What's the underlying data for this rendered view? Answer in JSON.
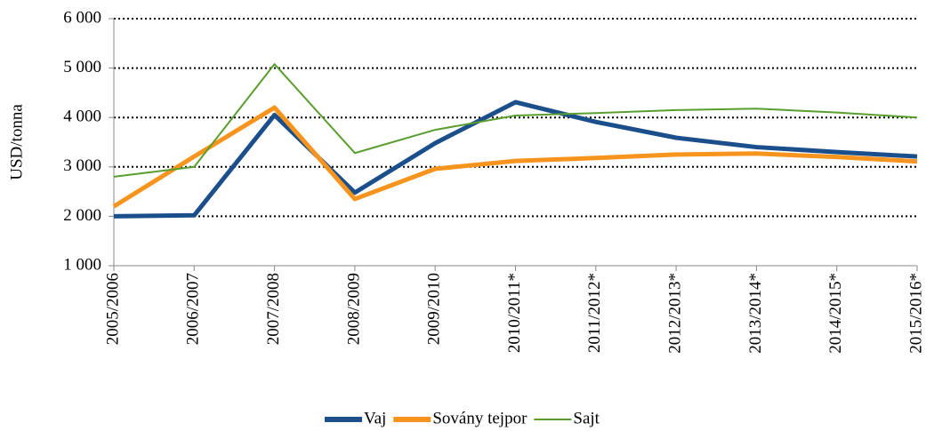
{
  "chart_data": {
    "type": "line",
    "y_label": "USD/tonna",
    "categories": [
      "2005/2006",
      "2006/2007",
      "2007/2008",
      "2008/2009",
      "2009/2010",
      "2010/2011*",
      "2011/2012*",
      "2012/2013*",
      "2013/2014*",
      "2014/2015*",
      "2015/2016*"
    ],
    "series": [
      {
        "name": "Vaj",
        "color": "#1b4f8c",
        "width": 5,
        "values": [
          2000,
          2020,
          4050,
          2480,
          3480,
          4310,
          3910,
          3590,
          3400,
          3300,
          3210
        ]
      },
      {
        "name": "Sovány tejpor",
        "color": "#f7941d",
        "width": 5,
        "values": [
          2200,
          3210,
          4200,
          2350,
          2960,
          3120,
          3180,
          3250,
          3270,
          3200,
          3110
        ]
      },
      {
        "name": "Sajt",
        "color": "#5a9e2f",
        "width": 2,
        "values": [
          2800,
          3000,
          5080,
          3280,
          3750,
          4040,
          4090,
          4150,
          4180,
          4100,
          4000
        ]
      }
    ],
    "ylim": [
      1000,
      6000
    ],
    "yticks": [
      {
        "value": 1000,
        "label": "1 000"
      },
      {
        "value": 2000,
        "label": "2 000"
      },
      {
        "value": 3000,
        "label": "3 000"
      },
      {
        "value": 4000,
        "label": "4 000"
      },
      {
        "value": 5000,
        "label": "5 000"
      },
      {
        "value": 6000,
        "label": "6 000"
      }
    ],
    "grid": true,
    "legend": "bottom"
  }
}
